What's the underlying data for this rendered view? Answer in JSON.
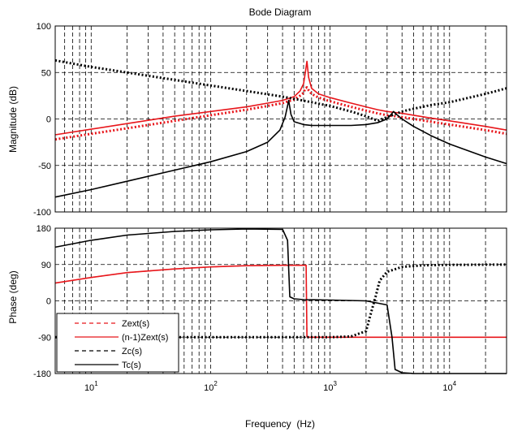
{
  "title": "Bode Diagram",
  "colors": {
    "red": "#e8161b",
    "black": "#000000",
    "grid": "#000000"
  },
  "chart_data": [
    {
      "type": "line",
      "panel": "magnitude",
      "xscale": "log",
      "xlim": [
        5,
        30000
      ],
      "ylim": [
        -100,
        100
      ],
      "ylabel": "Magnitude (dB)",
      "yticks": [
        "100",
        "50",
        "0",
        "-50",
        "-100"
      ],
      "grid": true,
      "series": [
        {
          "name": "Zext(s)",
          "color": "#e8161b",
          "style": "dotted",
          "x": [
            5,
            10,
            20,
            50,
            100,
            200,
            300,
            400,
            500,
            560,
            600,
            620,
            640,
            660,
            700,
            800,
            1000,
            1500,
            2000,
            2500,
            3000,
            3500,
            4000,
            5000,
            7000,
            10000,
            20000,
            30000
          ],
          "y": [
            -22,
            -16,
            -10,
            -2,
            4,
            10,
            14,
            17,
            21,
            25,
            28,
            33,
            34,
            31,
            27,
            23,
            19,
            13,
            9,
            6,
            4,
            3,
            2,
            0,
            -3,
            -6,
            -12,
            -16
          ]
        },
        {
          "name": "(n-1)Zext(s)",
          "color": "#e8161b",
          "style": "solid",
          "x": [
            5,
            10,
            20,
            50,
            100,
            200,
            300,
            400,
            500,
            560,
            600,
            620,
            640,
            660,
            700,
            800,
            1000,
            1500,
            2000,
            2500,
            3000,
            3500,
            4000,
            5000,
            7000,
            10000,
            20000,
            30000
          ],
          "y": [
            -17,
            -11,
            -5,
            3,
            8,
            13,
            17,
            20,
            24,
            30,
            38,
            50,
            62,
            45,
            33,
            27,
            23,
            17,
            13,
            10,
            8,
            7,
            6,
            4,
            1,
            -2,
            -8,
            -12
          ]
        },
        {
          "name": "Zc(s)",
          "color": "#000000",
          "style": "dotted",
          "x": [
            5,
            10,
            20,
            50,
            100,
            200,
            400,
            700,
            1000,
            1500,
            2000,
            2500,
            3000,
            4000,
            5000,
            7000,
            10000,
            20000,
            30000
          ],
          "y": [
            63,
            56,
            50,
            42,
            36,
            30,
            24,
            18,
            14,
            8,
            3,
            -2,
            2,
            8,
            11,
            15,
            18,
            27,
            33
          ]
        },
        {
          "name": "Tc(s)",
          "color": "#000000",
          "style": "solid",
          "x": [
            5,
            10,
            20,
            50,
            100,
            200,
            300,
            380,
            420,
            440,
            450,
            470,
            500,
            600,
            700,
            1000,
            1500,
            2000,
            2500,
            3000,
            3200,
            3400,
            3600,
            4000,
            5000,
            7000,
            10000,
            20000,
            30000
          ],
          "y": [
            -84,
            -76,
            -67,
            -55,
            -46,
            -35,
            -25,
            -12,
            2,
            14,
            20,
            5,
            -3,
            -6,
            -7,
            -7,
            -7,
            -6,
            -4,
            0,
            4,
            8,
            5,
            0,
            -8,
            -18,
            -27,
            -41,
            -48
          ]
        }
      ]
    },
    {
      "type": "line",
      "panel": "phase",
      "xscale": "log",
      "xlim": [
        5,
        30000
      ],
      "ylim": [
        -180,
        180
      ],
      "xlabel": "Frequency  (Hz)",
      "ylabel": "Phase (deg)",
      "xticks": [
        10,
        100,
        1000,
        10000
      ],
      "xtick_exponents": [
        "1",
        "2",
        "3",
        "4"
      ],
      "xtick_base": "10",
      "yticks": [
        "180",
        "90",
        "0",
        "-90",
        "-180"
      ],
      "grid": true,
      "legend": {
        "placement": "bottom-left",
        "entries": [
          "Zext(s)",
          "(n-1)Zext(s)",
          "Zc(s)",
          "Tc(s)"
        ]
      },
      "series": [
        {
          "name": "Zext(s)",
          "color": "#e8161b",
          "style": "dashed",
          "x": [
            5,
            10,
            20,
            50,
            100,
            200,
            400,
            600,
            630,
            640,
            660,
            700,
            1000,
            3000,
            10000,
            30000
          ],
          "y": [
            44,
            58,
            70,
            79,
            84,
            87,
            88,
            88,
            88,
            -89,
            -90,
            -90,
            -90,
            -90,
            -90,
            -90
          ]
        },
        {
          "name": "(n-1)Zext(s)",
          "color": "#e8161b",
          "style": "solid",
          "x": [
            5,
            10,
            20,
            50,
            100,
            200,
            400,
            600,
            630,
            640,
            660,
            700,
            1000,
            3000,
            10000,
            30000
          ],
          "y": [
            44,
            58,
            70,
            79,
            84,
            87,
            88,
            88,
            88,
            -89,
            -90,
            -90,
            -90,
            -90,
            -90,
            -90
          ]
        },
        {
          "name": "Zc(s)",
          "color": "#000000",
          "style": "dotted",
          "x": [
            5,
            100,
            1000,
            1500,
            2000,
            2200,
            2400,
            2600,
            3000,
            4000,
            6000,
            10000,
            30000
          ],
          "y": [
            -90,
            -90,
            -90,
            -88,
            -75,
            -30,
            10,
            50,
            72,
            84,
            88,
            89,
            90
          ]
        },
        {
          "name": "Tc(s)",
          "color": "#000000",
          "style": "solid",
          "x": [
            5,
            10,
            20,
            50,
            100,
            200,
            400,
            440,
            460,
            500,
            600,
            1000,
            2000,
            3000,
            3300,
            3500,
            4000,
            5000,
            10000,
            30000
          ],
          "y": [
            133,
            150,
            163,
            172,
            176,
            178,
            177,
            150,
            10,
            5,
            3,
            2,
            0,
            -10,
            -90,
            -170,
            -178,
            -180,
            -180,
            -180
          ]
        }
      ]
    }
  ]
}
